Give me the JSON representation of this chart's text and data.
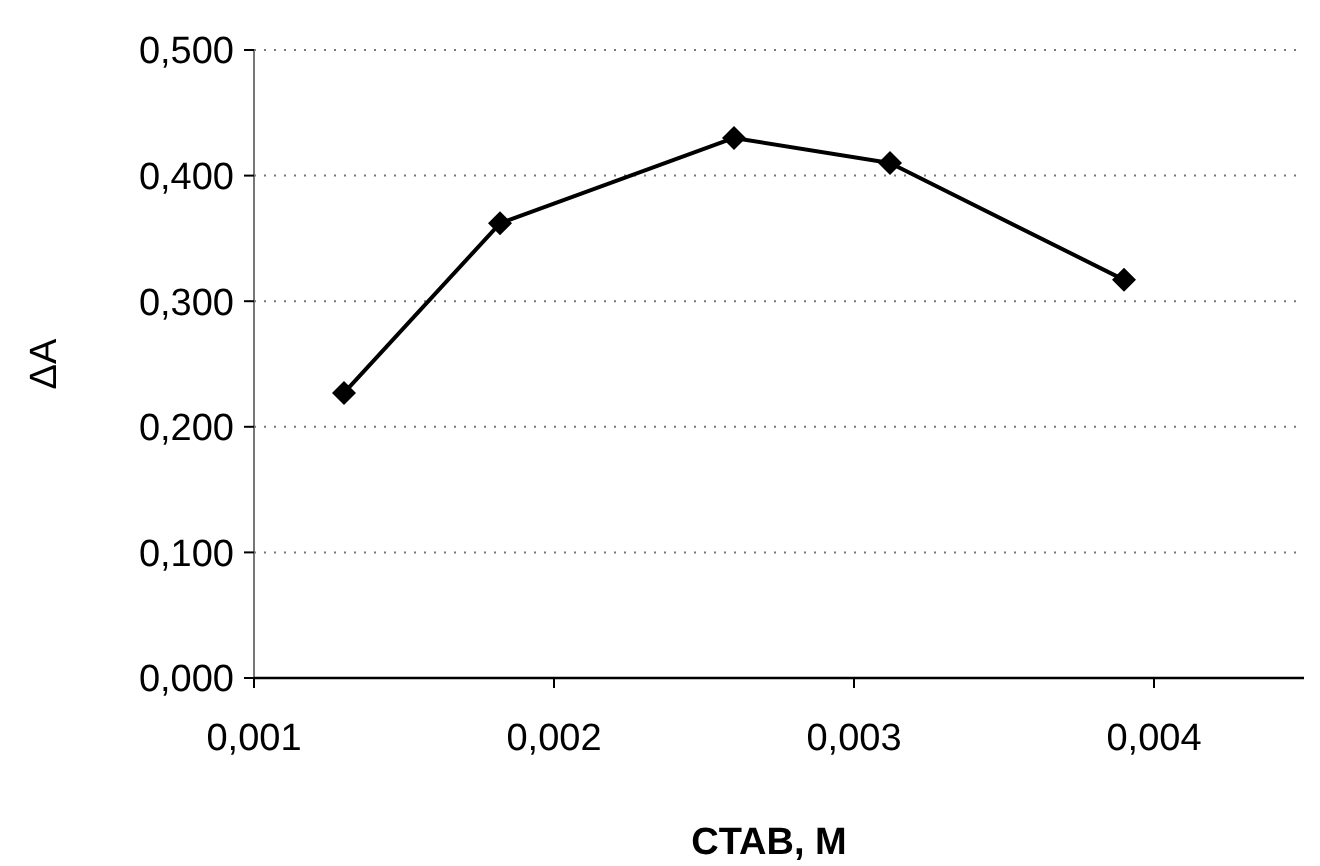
{
  "chart_data": {
    "type": "line",
    "xlabel": "CTAB, M",
    "ylabel": "ΔA",
    "x": [
      0.0013,
      0.00182,
      0.0026,
      0.00312,
      0.0039
    ],
    "series": [
      {
        "color": "#000000",
        "values": [
          0.227,
          0.362,
          0.43,
          0.41,
          0.317
        ]
      }
    ],
    "xlim": [
      0.001,
      0.0045
    ],
    "xticks": [
      {
        "value": 0.001,
        "label": "0,001"
      },
      {
        "value": 0.002,
        "label": "0,002"
      },
      {
        "value": 0.003,
        "label": "0,003"
      },
      {
        "value": 0.004,
        "label": "0,004"
      }
    ],
    "ylim": [
      0,
      0.5
    ],
    "yticks": [
      {
        "value": 0,
        "label": "0,000"
      },
      {
        "value": 0.1,
        "label": "0,100"
      },
      {
        "value": 0.2,
        "label": "0,200"
      },
      {
        "value": 0.3,
        "label": "0,300"
      },
      {
        "value": 0.4,
        "label": "0,400"
      },
      {
        "value": 0.5,
        "label": "0,500"
      }
    ],
    "grid": "y",
    "marker": "diamond",
    "line_style": "solid"
  }
}
